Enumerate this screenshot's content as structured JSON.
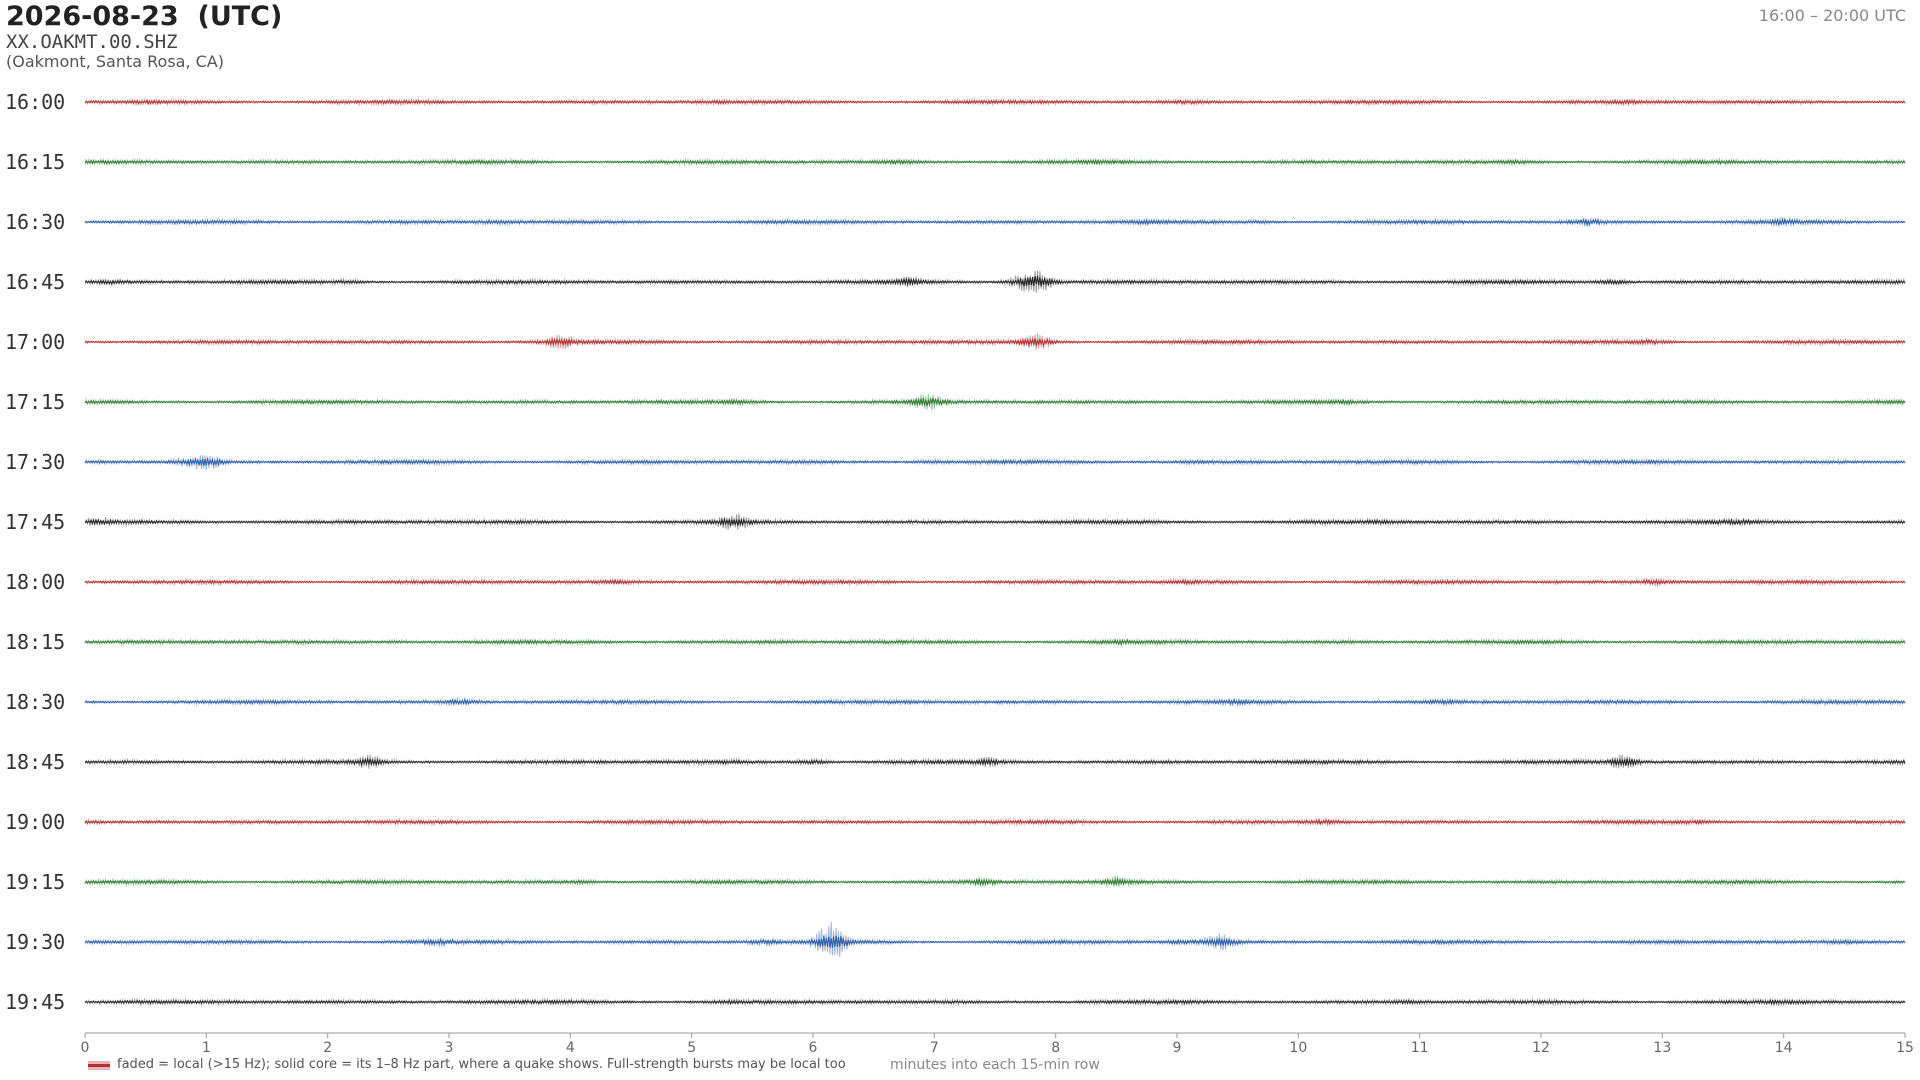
{
  "header": {
    "title": "2026-08-23  (UTC)",
    "station": "XX.OAKMT.00.SHZ",
    "location": "(Oakmont, Santa Rosa, CA)",
    "time_range": "16:00 – 20:00 UTC"
  },
  "legend": {
    "note": "faded = local (>15 Hz); solid core = its 1–8 Hz part, where a quake shows. Full-strength bursts may be local too"
  },
  "colors": {
    "red": "#b03030",
    "green": "#2e7d32",
    "blue": "#2a5ea8",
    "black": "#262626"
  },
  "chart_data": {
    "type": "line",
    "title": "2026-08-23  (UTC)",
    "xlabel": "minutes into each 15-min row",
    "ylabel": "",
    "xlim": [
      0,
      15
    ],
    "xticks": [
      "0",
      "1",
      "2",
      "3",
      "4",
      "5",
      "6",
      "7",
      "8",
      "9",
      "10",
      "11",
      "12",
      "13",
      "14",
      "15"
    ],
    "grid": false,
    "series": [
      {
        "name": "16:00",
        "color": "red",
        "events": [
          [
            0.5,
            1.6
          ],
          [
            5.2,
            1.4
          ],
          [
            9.1,
            1.5
          ],
          [
            12.7,
            1.5
          ]
        ]
      },
      {
        "name": "16:15",
        "color": "green",
        "events": [
          [
            6.7,
            1.8
          ],
          [
            8.4,
            1.2
          ],
          [
            11.8,
            1.6
          ]
        ]
      },
      {
        "name": "16:30",
        "color": "blue",
        "events": [
          [
            3.4,
            1.6
          ],
          [
            8.7,
            1.7
          ],
          [
            9.7,
            1.5
          ],
          [
            12.4,
            2.5
          ],
          [
            14.0,
            1.8
          ]
        ]
      },
      {
        "name": "16:45",
        "color": "black",
        "events": [
          [
            0.2,
            1.8
          ],
          [
            2.2,
            1.6
          ],
          [
            6.8,
            2.0
          ],
          [
            7.7,
            4.5
          ],
          [
            7.85,
            8.0
          ],
          [
            12.6,
            2.5
          ]
        ]
      },
      {
        "name": "17:00",
        "color": "red",
        "events": [
          [
            3.9,
            3.0
          ],
          [
            7.85,
            4.0
          ],
          [
            12.9,
            2.0
          ]
        ]
      },
      {
        "name": "17:15",
        "color": "green",
        "events": [
          [
            5.4,
            1.8
          ],
          [
            6.95,
            3.2
          ],
          [
            10.4,
            1.5
          ]
        ]
      },
      {
        "name": "17:30",
        "color": "blue",
        "events": [
          [
            0.8,
            2.0
          ],
          [
            1.0,
            4.0
          ],
          [
            6.95,
            1.8
          ],
          [
            9.1,
            1.3
          ]
        ]
      },
      {
        "name": "17:45",
        "color": "black",
        "events": [
          [
            0.1,
            1.6
          ],
          [
            5.35,
            3.0
          ],
          [
            10.7,
            1.5
          ],
          [
            13.6,
            1.5
          ]
        ]
      },
      {
        "name": "18:00",
        "color": "red",
        "events": [
          [
            4.4,
            1.8
          ],
          [
            9.1,
            1.5
          ],
          [
            12.1,
            1.5
          ],
          [
            12.95,
            2.0
          ]
        ]
      },
      {
        "name": "18:15",
        "color": "green",
        "events": [
          [
            2.6,
            1.5
          ],
          [
            5.7,
            1.3
          ],
          [
            8.5,
            1.6
          ],
          [
            10.4,
            1.2
          ]
        ]
      },
      {
        "name": "18:30",
        "color": "blue",
        "events": [
          [
            3.1,
            2.4
          ],
          [
            6.8,
            1.5
          ],
          [
            9.5,
            1.5
          ],
          [
            11.2,
            1.6
          ]
        ]
      },
      {
        "name": "18:45",
        "color": "black",
        "events": [
          [
            2.35,
            2.6
          ],
          [
            5.3,
            1.4
          ],
          [
            6.0,
            2.8
          ],
          [
            7.45,
            2.0
          ],
          [
            12.7,
            4.0
          ]
        ]
      },
      {
        "name": "19:00",
        "color": "red",
        "events": [
          [
            0.6,
            1.6
          ],
          [
            10.2,
            2.0
          ],
          [
            13.3,
            1.4
          ]
        ]
      },
      {
        "name": "19:15",
        "color": "green",
        "events": [
          [
            4.1,
            1.7
          ],
          [
            7.4,
            2.2
          ],
          [
            8.5,
            2.4
          ]
        ]
      },
      {
        "name": "19:30",
        "color": "blue",
        "events": [
          [
            2.9,
            1.8
          ],
          [
            5.6,
            2.0
          ],
          [
            6.15,
            7.0
          ],
          [
            9.05,
            2.0
          ],
          [
            9.35,
            4.0
          ],
          [
            14.5,
            1.5
          ]
        ]
      },
      {
        "name": "19:45",
        "color": "black",
        "events": [
          [
            5.3,
            1.6
          ],
          [
            10.9,
            1.4
          ],
          [
            14.0,
            1.4
          ]
        ]
      }
    ]
  }
}
